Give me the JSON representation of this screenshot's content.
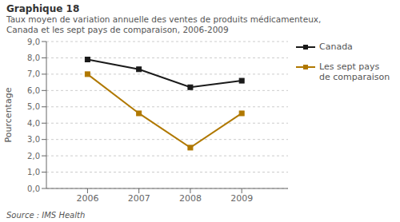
{
  "chart_data": {
    "type": "line",
    "title": "Graphique 18",
    "subtitle": "Taux moyen de variation annuelle des ventes de produits médicamenteux,\nCanada et les sept pays de comparaison, 2006-2009",
    "y_label": "Pourcentage",
    "annotations": [
      "Source : IMS Health"
    ],
    "x": [
      2006,
      2007,
      2008,
      2009
    ],
    "xlim": [
      2005.2,
      2009.9
    ],
    "xticks": [
      2006,
      2007,
      2008,
      2009
    ],
    "ylim": [
      0.0,
      9.0
    ],
    "yticks": [
      {
        "value": 0.0,
        "label": "0,0"
      },
      {
        "value": 1.0,
        "label": "1,0"
      },
      {
        "value": 2.0,
        "label": "2,0"
      },
      {
        "value": 3.0,
        "label": "3,0"
      },
      {
        "value": 4.0,
        "label": "4,0"
      },
      {
        "value": 5.0,
        "label": "5,0"
      },
      {
        "value": 6.0,
        "label": "6,0"
      },
      {
        "value": 7.0,
        "label": "7,0"
      },
      {
        "value": 8.0,
        "label": "8,0"
      },
      {
        "value": 9.0,
        "label": "9,0"
      }
    ],
    "grid": true,
    "legend": "right",
    "marker": "square",
    "series": [
      {
        "name": "Canada",
        "color": "#1a1a1a",
        "values": [
          7.9,
          7.3,
          6.2,
          6.6
        ]
      },
      {
        "name": "Les sept pays\nde comparaison",
        "color": "#b07800",
        "values": [
          7.0,
          4.6,
          2.5,
          4.6
        ]
      }
    ]
  }
}
